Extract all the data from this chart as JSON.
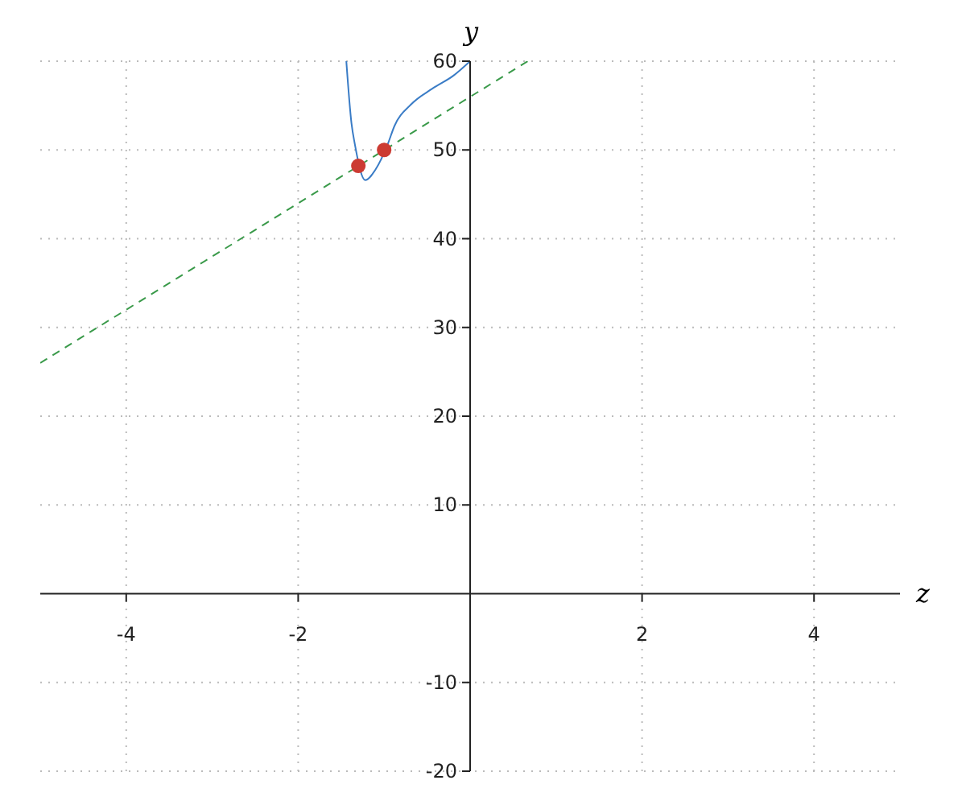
{
  "chart_data": {
    "type": "line",
    "xlabel": "z",
    "ylabel": "y",
    "xlim": [
      -5,
      5
    ],
    "ylim": [
      -20,
      60
    ],
    "xticks": [
      -4,
      -2,
      2,
      4
    ],
    "yticks": [
      -20,
      -10,
      10,
      20,
      30,
      40,
      50,
      60
    ],
    "grid": true,
    "legend": false,
    "series": [
      {
        "type": "line",
        "color": "#3a7cc6",
        "marker": "none",
        "line_style": "solid",
        "x": [
          -1.44,
          -1.38,
          -1.34,
          -1.22,
          -1.1,
          -0.96,
          -0.88,
          -0.69,
          -0.44,
          -0.19,
          0
        ],
        "values": [
          60,
          53,
          50.6,
          46.6,
          47.8,
          50.6,
          52.7,
          55.1,
          56.9,
          58.4,
          60
        ]
      },
      {
        "color": "#3a9a4a",
        "marker": "none",
        "line_style": "dashed",
        "x": [
          -5,
          0.67
        ],
        "values": [
          26,
          60
        ]
      },
      {
        "type": "scatter",
        "color": "#cc3b33",
        "marker": "circle",
        "x": [
          -1.3,
          -1
        ],
        "values": [
          48.2,
          50
        ]
      }
    ]
  }
}
